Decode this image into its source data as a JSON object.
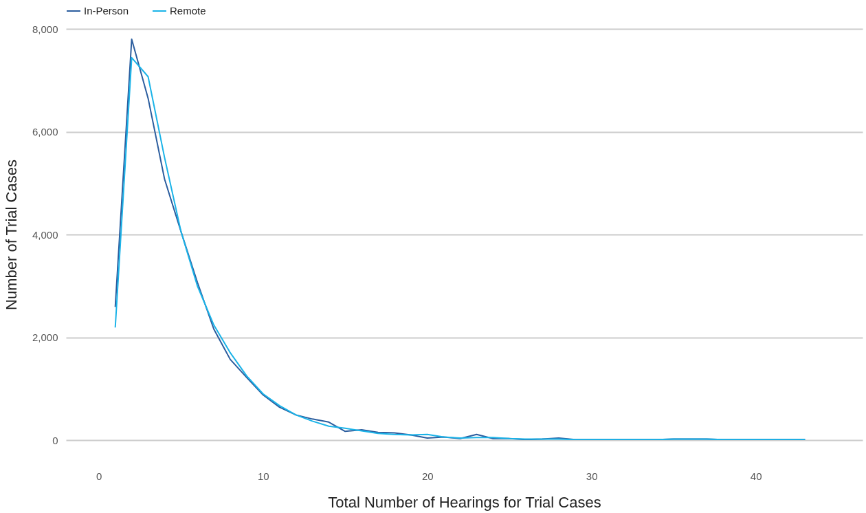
{
  "chart_data": {
    "type": "line",
    "xlabel": "Total Number of Hearings for Trial Cases",
    "ylabel": "Number of Trial Cases",
    "x": [
      1,
      2,
      3,
      4,
      5,
      6,
      7,
      8,
      9,
      10,
      11,
      12,
      13,
      14,
      15,
      16,
      17,
      18,
      19,
      20,
      21,
      22,
      23,
      24,
      25,
      26,
      27,
      28,
      29,
      30,
      31,
      32,
      33,
      34,
      35,
      36,
      37,
      38,
      39,
      40,
      41,
      42,
      43
    ],
    "series": [
      {
        "name": "In-Person",
        "color": "#2b5d9e",
        "values": [
          2590,
          7800,
          6650,
          5080,
          4060,
          3070,
          2160,
          1570,
          1220,
          880,
          640,
          490,
          410,
          350,
          170,
          200,
          150,
          140,
          100,
          40,
          60,
          30,
          110,
          30,
          30,
          10,
          20,
          40,
          10,
          10,
          10,
          10,
          10,
          10,
          20,
          20,
          20,
          10,
          10,
          10,
          10,
          10,
          10
        ]
      },
      {
        "name": "Remote",
        "color": "#1ab3e8",
        "values": [
          2190,
          7440,
          7070,
          5500,
          4060,
          3000,
          2240,
          1700,
          1250,
          900,
          670,
          490,
          370,
          270,
          230,
          180,
          130,
          110,
          100,
          110,
          60,
          40,
          50,
          50,
          30,
          20,
          20,
          20,
          10,
          10,
          10,
          10,
          10,
          10,
          20,
          20,
          20,
          10,
          10,
          10,
          10,
          10,
          10
        ]
      }
    ],
    "xlim": [
      -2,
      46.5
    ],
    "xticks": [
      0,
      10,
      20,
      30,
      40
    ],
    "ylim": [
      0,
      8000
    ],
    "yticks": [
      {
        "value": 0,
        "label": "0"
      },
      {
        "value": 2000,
        "label": "2,000"
      },
      {
        "value": 4000,
        "label": "4,000"
      },
      {
        "value": 6000,
        "label": "6,000"
      },
      {
        "value": 8000,
        "label": "8,000"
      }
    ],
    "grid": "y",
    "legend": "top",
    "marker": "none",
    "line_style": "solid"
  }
}
